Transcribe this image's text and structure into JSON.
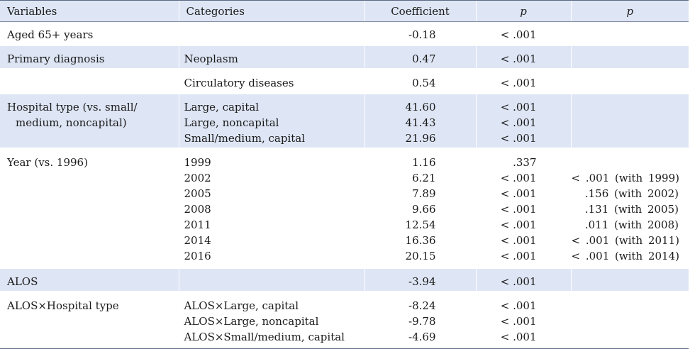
{
  "header": {
    "variables": "Variables",
    "categories": "Categories",
    "coefficient": "Coefficient",
    "p": "p",
    "p2": "p"
  },
  "rows": [
    {
      "variable": "Aged 65+ years",
      "variable_cont": "",
      "categories": [
        ""
      ],
      "coefficients": [
        "-0.18"
      ],
      "p": [
        "< .001"
      ],
      "p2": [
        ""
      ]
    },
    {
      "variable": "Primary diagnosis",
      "variable_cont": "",
      "categories": [
        "Neoplasm"
      ],
      "coefficients": [
        "0.47"
      ],
      "p": [
        "< .001"
      ],
      "p2": [
        ""
      ]
    },
    {
      "variable": "",
      "variable_cont": "",
      "categories": [
        "Circulatory diseases"
      ],
      "coefficients": [
        "0.54"
      ],
      "p": [
        "< .001"
      ],
      "p2": [
        ""
      ]
    },
    {
      "variable": "Hospital type (vs. small/",
      "variable_cont": "medium, noncapital)",
      "categories": [
        "Large, capital",
        "Large, noncapital",
        "Small/medium, capital"
      ],
      "coefficients": [
        "41.60",
        "41.43",
        "21.96"
      ],
      "p": [
        "< .001",
        "< .001",
        "< .001"
      ],
      "p2": [
        "",
        "",
        ""
      ]
    },
    {
      "variable": "Year (vs. 1996)",
      "variable_cont": "",
      "categories": [
        "1999",
        "2002",
        "2005",
        "2008",
        "2011",
        "2014",
        "2016"
      ],
      "coefficients": [
        "1.16",
        "6.21",
        "7.89",
        "9.66",
        "12.54",
        "16.36",
        "20.15"
      ],
      "p": [
        ".337",
        "< .001",
        "< .001",
        "< .001",
        "< .001",
        "< .001",
        "< .001"
      ],
      "p2": [
        "",
        "< .001 (with 1999)",
        ".156 (with 2002)",
        ".131 (with 2005)",
        ".011 (with 2008)",
        "< .001 (with 2011)",
        "< .001 (with 2014)"
      ]
    },
    {
      "variable": "ALOS",
      "variable_cont": "",
      "categories": [
        ""
      ],
      "coefficients": [
        "-3.94"
      ],
      "p": [
        "< .001"
      ],
      "p2": [
        ""
      ]
    },
    {
      "variable": "ALOS×Hospital type",
      "variable_cont": "",
      "categories": [
        "ALOS×Large, capital",
        "ALOS×Large, noncapital",
        "ALOS×Small/medium, capital"
      ],
      "coefficients": [
        "-8.24",
        "-9.78",
        "-4.69"
      ],
      "p": [
        "< .001",
        "< .001",
        "< .001"
      ],
      "p2": [
        "",
        "",
        ""
      ]
    }
  ]
}
